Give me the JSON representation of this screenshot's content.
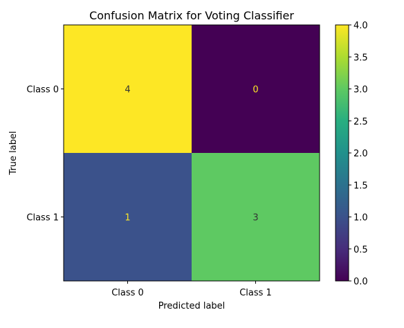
{
  "chart_data": {
    "type": "heatmap",
    "title": "Confusion Matrix for Voting Classifier",
    "xlabel": "Predicted label",
    "ylabel": "True label",
    "x_categories": [
      "Class 0",
      "Class 1"
    ],
    "y_categories": [
      "Class 0",
      "Class 1"
    ],
    "values": [
      [
        4,
        0
      ],
      [
        1,
        3
      ]
    ],
    "colorbar": {
      "min": 0.0,
      "max": 4.0,
      "ticks": [
        "0.0",
        "0.5",
        "1.0",
        "1.5",
        "2.0",
        "2.5",
        "3.0",
        "3.5",
        "4.0"
      ],
      "colormap": "viridis"
    },
    "colors": {
      "4": "#fde725",
      "3": "#5ec962",
      "1": "#3b528b",
      "0": "#440154",
      "text_on_dark": "#fde725",
      "text_on_light": "#333333"
    }
  }
}
